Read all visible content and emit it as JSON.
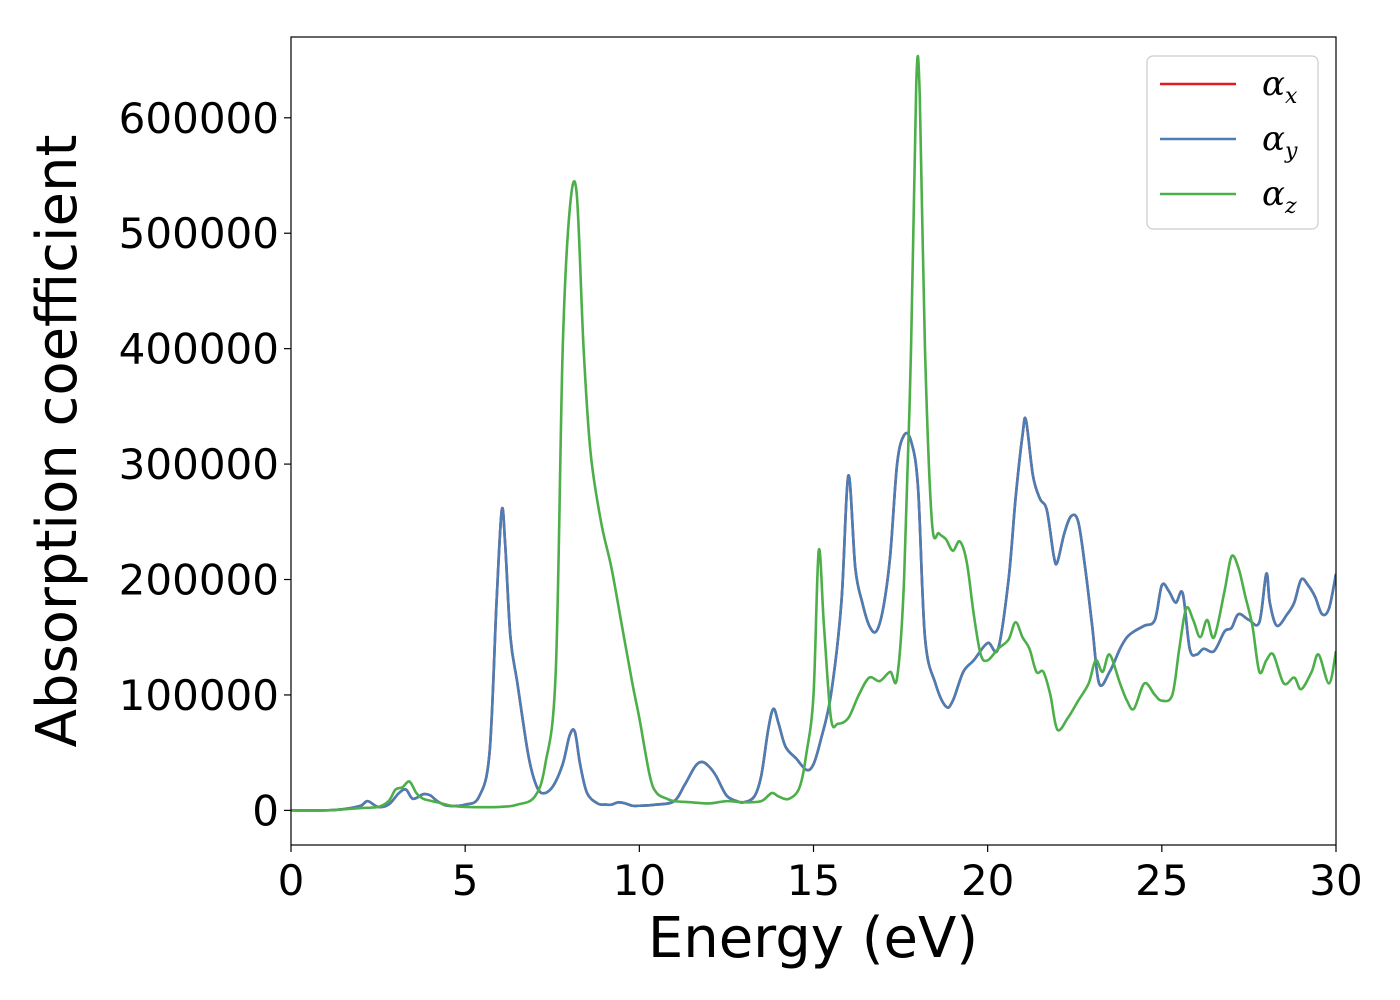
{
  "chart_data": {
    "type": "line",
    "xlabel": "Energy (eV)",
    "ylabel": "Absorption coefficient",
    "xlim": [
      0,
      30
    ],
    "ylim": [
      -30000,
      670000
    ],
    "xticks": [
      0,
      5,
      10,
      15,
      20,
      25,
      30
    ],
    "xtick_labels": [
      "0",
      "5",
      "10",
      "15",
      "20",
      "25",
      "30"
    ],
    "yticks": [
      0,
      100000,
      200000,
      300000,
      400000,
      500000,
      600000
    ],
    "ytick_labels": [
      "0",
      "100000",
      "200000",
      "300000",
      "400000",
      "500000",
      "600000"
    ],
    "grid": false,
    "legend_position": "top-right",
    "series": [
      {
        "name": "α_x",
        "legend_base": "α",
        "legend_sub": "x",
        "color": "#e41a1c",
        "x": [
          0,
          1,
          1.5,
          2,
          2.2,
          2.5,
          2.8,
          3.1,
          3.3,
          3.5,
          3.8,
          4.0,
          4.2,
          4.5,
          5.0,
          5.4,
          5.7,
          5.9,
          6.05,
          6.15,
          6.3,
          6.5,
          6.8,
          7.0,
          7.2,
          7.5,
          7.8,
          8.0,
          8.15,
          8.3,
          8.5,
          8.8,
          9.0,
          9.2,
          9.4,
          9.6,
          9.8,
          10.0,
          10.5,
          11.0,
          11.3,
          11.6,
          11.8,
          12.0,
          12.2,
          12.5,
          12.8,
          13.0,
          13.3,
          13.5,
          13.7,
          13.85,
          14.0,
          14.2,
          14.5,
          14.8,
          15.0,
          15.2,
          15.5,
          15.8,
          16.0,
          16.2,
          16.4,
          16.6,
          16.8,
          17.0,
          17.2,
          17.4,
          17.6,
          17.8,
          18.0,
          18.2,
          18.5,
          18.8,
          19.0,
          19.3,
          19.6,
          20.0,
          20.3,
          20.6,
          20.8,
          21.0,
          21.1,
          21.3,
          21.5,
          21.7,
          21.9,
          22.0,
          22.2,
          22.4,
          22.6,
          22.8,
          23.0,
          23.2,
          23.5,
          23.8,
          24.0,
          24.2,
          24.5,
          24.8,
          25.0,
          25.2,
          25.4,
          25.6,
          25.8,
          26.0,
          26.2,
          26.5,
          26.8,
          27.0,
          27.2,
          27.5,
          27.8,
          28.0,
          28.1,
          28.3,
          28.6,
          28.8,
          29.0,
          29.2,
          29.4,
          29.6,
          29.8,
          30.0
        ],
        "values": [
          0,
          0,
          1000,
          4000,
          8000,
          3000,
          5000,
          15000,
          18000,
          10000,
          14000,
          13000,
          8000,
          4000,
          5000,
          12000,
          50000,
          180000,
          260000,
          230000,
          150000,
          110000,
          50000,
          25000,
          15000,
          20000,
          40000,
          65000,
          68000,
          40000,
          15000,
          6000,
          5000,
          5000,
          7000,
          6000,
          4000,
          4000,
          5000,
          8000,
          22000,
          38000,
          42000,
          38000,
          30000,
          13000,
          8000,
          7000,
          12000,
          30000,
          70000,
          88000,
          75000,
          55000,
          45000,
          35000,
          40000,
          60000,
          100000,
          180000,
          290000,
          210000,
          180000,
          160000,
          155000,
          175000,
          220000,
          300000,
          325000,
          320000,
          280000,
          150000,
          110000,
          90000,
          95000,
          120000,
          130000,
          145000,
          140000,
          200000,
          270000,
          325000,
          338000,
          290000,
          270000,
          260000,
          220000,
          215000,
          240000,
          255000,
          250000,
          210000,
          160000,
          110000,
          120000,
          140000,
          150000,
          155000,
          160000,
          165000,
          195000,
          190000,
          180000,
          188000,
          140000,
          135000,
          140000,
          138000,
          155000,
          158000,
          170000,
          165000,
          163000,
          205000,
          180000,
          160000,
          170000,
          180000,
          200000,
          195000,
          185000,
          170000,
          175000,
          205000
        ]
      },
      {
        "name": "α_y",
        "legend_base": "α",
        "legend_sub": "y",
        "color": "#4a7eb4",
        "x": [
          0,
          1,
          1.5,
          2,
          2.2,
          2.5,
          2.8,
          3.1,
          3.3,
          3.5,
          3.8,
          4.0,
          4.2,
          4.5,
          5.0,
          5.4,
          5.7,
          5.9,
          6.05,
          6.15,
          6.3,
          6.5,
          6.8,
          7.0,
          7.2,
          7.5,
          7.8,
          8.0,
          8.15,
          8.3,
          8.5,
          8.8,
          9.0,
          9.2,
          9.4,
          9.6,
          9.8,
          10.0,
          10.5,
          11.0,
          11.3,
          11.6,
          11.8,
          12.0,
          12.2,
          12.5,
          12.8,
          13.0,
          13.3,
          13.5,
          13.7,
          13.85,
          14.0,
          14.2,
          14.5,
          14.8,
          15.0,
          15.2,
          15.5,
          15.8,
          16.0,
          16.2,
          16.4,
          16.6,
          16.8,
          17.0,
          17.2,
          17.4,
          17.6,
          17.8,
          18.0,
          18.2,
          18.5,
          18.8,
          19.0,
          19.3,
          19.6,
          20.0,
          20.3,
          20.6,
          20.8,
          21.0,
          21.1,
          21.3,
          21.5,
          21.7,
          21.9,
          22.0,
          22.2,
          22.4,
          22.6,
          22.8,
          23.0,
          23.2,
          23.5,
          23.8,
          24.0,
          24.2,
          24.5,
          24.8,
          25.0,
          25.2,
          25.4,
          25.6,
          25.8,
          26.0,
          26.2,
          26.5,
          26.8,
          27.0,
          27.2,
          27.5,
          27.8,
          28.0,
          28.1,
          28.3,
          28.6,
          28.8,
          29.0,
          29.2,
          29.4,
          29.6,
          29.8,
          30.0
        ],
        "values": [
          0,
          0,
          1000,
          4000,
          8000,
          3000,
          5000,
          15000,
          18000,
          10000,
          14000,
          13000,
          8000,
          4000,
          5000,
          12000,
          50000,
          180000,
          260000,
          230000,
          150000,
          110000,
          50000,
          25000,
          15000,
          20000,
          40000,
          65000,
          68000,
          40000,
          15000,
          6000,
          5000,
          5000,
          7000,
          6000,
          4000,
          4000,
          5000,
          8000,
          22000,
          38000,
          42000,
          38000,
          30000,
          13000,
          8000,
          7000,
          12000,
          30000,
          70000,
          88000,
          75000,
          55000,
          45000,
          35000,
          40000,
          60000,
          100000,
          180000,
          290000,
          210000,
          180000,
          160000,
          155000,
          175000,
          220000,
          300000,
          325000,
          320000,
          280000,
          150000,
          110000,
          90000,
          95000,
          120000,
          130000,
          145000,
          140000,
          200000,
          270000,
          325000,
          338000,
          290000,
          270000,
          260000,
          220000,
          215000,
          240000,
          255000,
          250000,
          210000,
          160000,
          110000,
          120000,
          140000,
          150000,
          155000,
          160000,
          165000,
          195000,
          190000,
          180000,
          188000,
          140000,
          135000,
          140000,
          138000,
          155000,
          158000,
          170000,
          165000,
          163000,
          205000,
          180000,
          160000,
          170000,
          180000,
          200000,
          195000,
          185000,
          170000,
          175000,
          205000
        ]
      },
      {
        "name": "α_z",
        "legend_base": "α",
        "legend_sub": "z",
        "color": "#4daf4a",
        "x": [
          0,
          1,
          2,
          2.5,
          2.8,
          3.0,
          3.2,
          3.4,
          3.6,
          3.8,
          4.2,
          4.6,
          5.0,
          6.0,
          6.5,
          7.0,
          7.3,
          7.6,
          7.8,
          8.0,
          8.2,
          8.4,
          8.6,
          8.9,
          9.2,
          9.5,
          9.8,
          10.0,
          10.3,
          10.5,
          10.8,
          11.0,
          11.5,
          12.0,
          12.5,
          13.0,
          13.5,
          13.8,
          14.0,
          14.3,
          14.6,
          14.8,
          15.0,
          15.15,
          15.3,
          15.5,
          15.7,
          16.0,
          16.3,
          16.6,
          16.9,
          17.2,
          17.4,
          17.6,
          17.8,
          17.95,
          18.05,
          18.2,
          18.4,
          18.6,
          18.8,
          19.0,
          19.2,
          19.4,
          19.6,
          19.8,
          20.0,
          20.3,
          20.6,
          20.8,
          21.0,
          21.2,
          21.4,
          21.6,
          21.8,
          22.0,
          22.3,
          22.6,
          22.9,
          23.1,
          23.3,
          23.5,
          23.8,
          24.0,
          24.2,
          24.5,
          24.8,
          25.0,
          25.3,
          25.5,
          25.7,
          25.9,
          26.1,
          26.3,
          26.5,
          26.8,
          27.0,
          27.2,
          27.4,
          27.6,
          27.8,
          28.0,
          28.2,
          28.5,
          28.8,
          29.0,
          29.3,
          29.5,
          29.8,
          30.0
        ],
        "values": [
          0,
          0,
          2000,
          3000,
          8000,
          18000,
          20000,
          25000,
          15000,
          10000,
          7000,
          4000,
          3000,
          3000,
          5000,
          12000,
          40000,
          120000,
          400000,
          520000,
          535000,
          400000,
          310000,
          250000,
          210000,
          160000,
          110000,
          80000,
          30000,
          15000,
          10000,
          8000,
          7000,
          6000,
          8000,
          7000,
          8000,
          15000,
          12000,
          10000,
          20000,
          50000,
          100000,
          225000,
          160000,
          80000,
          75000,
          80000,
          100000,
          115000,
          112000,
          120000,
          115000,
          200000,
          400000,
          630000,
          620000,
          400000,
          250000,
          240000,
          235000,
          225000,
          233000,
          215000,
          170000,
          135000,
          130000,
          140000,
          148000,
          163000,
          150000,
          140000,
          120000,
          120000,
          100000,
          70000,
          80000,
          95000,
          110000,
          130000,
          120000,
          135000,
          110000,
          95000,
          88000,
          110000,
          100000,
          95000,
          100000,
          140000,
          175000,
          165000,
          150000,
          165000,
          150000,
          190000,
          220000,
          210000,
          185000,
          160000,
          120000,
          130000,
          135000,
          110000,
          115000,
          105000,
          120000,
          135000,
          110000,
          138000
        ]
      }
    ]
  }
}
